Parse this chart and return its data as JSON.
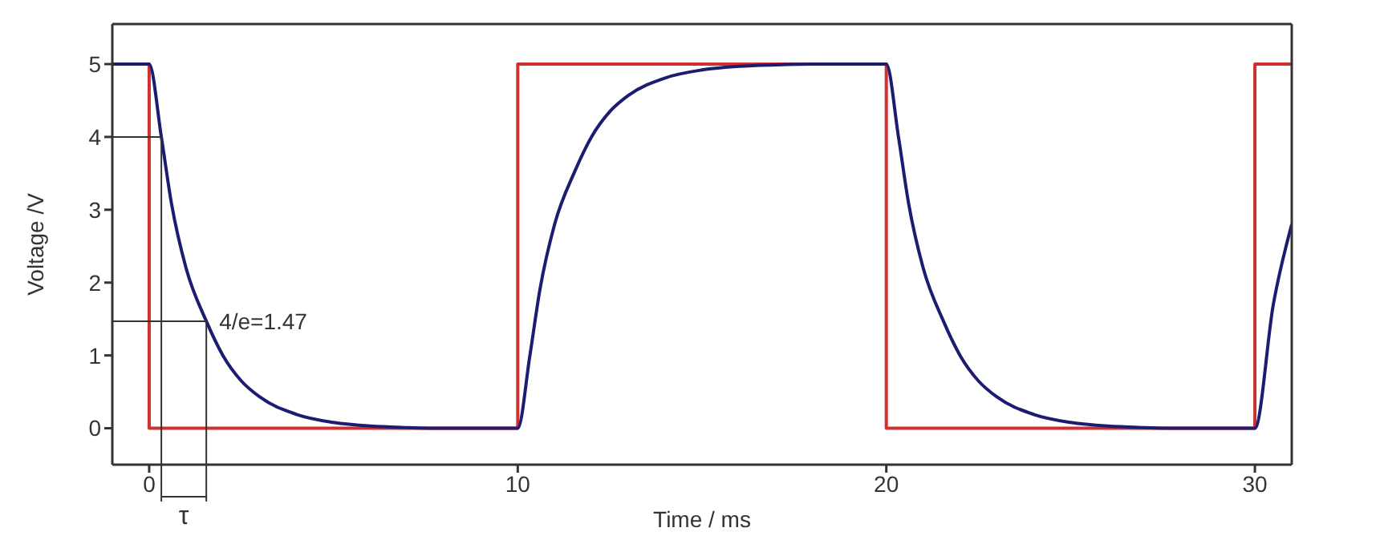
{
  "chart_data": {
    "type": "line",
    "xlabel": "Time / ms",
    "ylabel": "Voltage /V",
    "xlim": [
      -1,
      31
    ],
    "ylim": [
      -0.5,
      5.55
    ],
    "xticks": [
      0,
      10,
      20,
      30
    ],
    "yticks": [
      0,
      1,
      2,
      3,
      4,
      5
    ],
    "grid": false,
    "marker": "none",
    "line_style": "solid",
    "series": [
      {
        "type": "step",
        "color": "#d03030",
        "x": [
          -1,
          0,
          10,
          20,
          30,
          31
        ],
        "values": [
          5,
          0,
          5,
          0,
          5,
          5
        ]
      },
      {
        "color": "#1c1c70",
        "x": [
          -1,
          0,
          0.33,
          0.6,
          1,
          1.55,
          2,
          2.5,
          3,
          4,
          5,
          6,
          7,
          8,
          10,
          10.33,
          10.6,
          11,
          11.55,
          12,
          12.5,
          13,
          14,
          15,
          16,
          17,
          18,
          20,
          20.33,
          20.6,
          21,
          21.55,
          22,
          22.5,
          23,
          24,
          25,
          26,
          27,
          28,
          30,
          30.5,
          31
        ],
        "values": [
          5,
          5,
          4,
          3.1,
          2.2,
          1.47,
          1,
          0.65,
          0.43,
          0.19,
          0.08,
          0.03,
          0.01,
          0,
          0,
          1,
          1.9,
          2.8,
          3.53,
          4,
          4.35,
          4.57,
          4.81,
          4.92,
          4.97,
          4.99,
          5,
          5,
          4,
          3.1,
          2.2,
          1.47,
          1,
          0.65,
          0.43,
          0.19,
          0.08,
          0.03,
          0.01,
          0,
          0,
          1.7,
          2.8
        ]
      }
    ],
    "annotations": [
      {
        "text": "4/e=1.47",
        "x": 1.55,
        "y": 1.47
      },
      {
        "text": "τ",
        "x": 0.33,
        "y": 4
      }
    ]
  }
}
